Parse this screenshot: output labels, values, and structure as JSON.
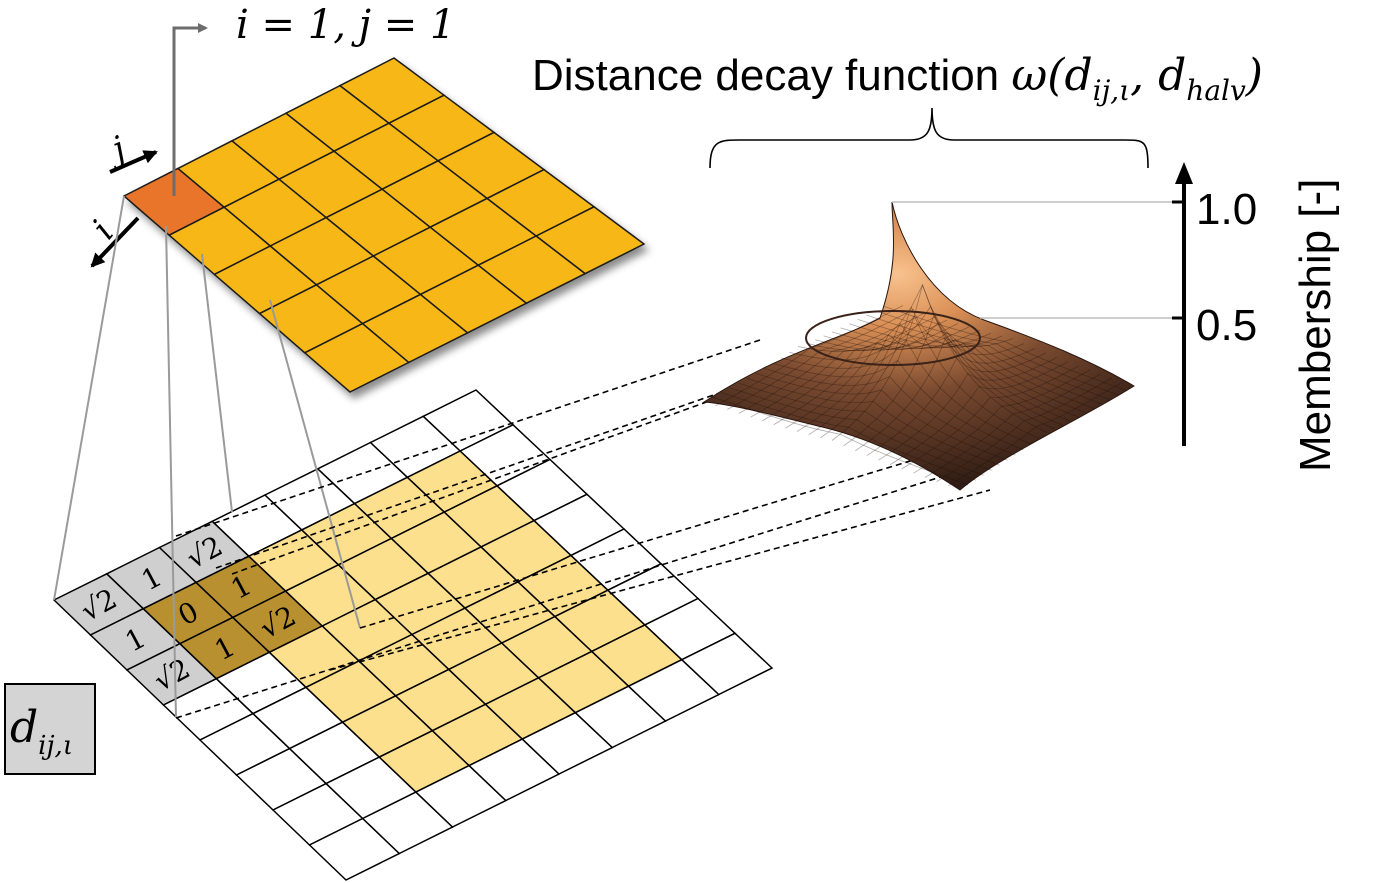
{
  "index_label": "i = 1, j = 1",
  "axis_j": "j",
  "axis_i": "i",
  "title": {
    "prefix": "Distance decay function ",
    "omega": "ω",
    "open": "(",
    "d1": "d",
    "d1_sub": "ij,ι",
    "comma": ", ",
    "d2": "d",
    "d2_sub": "halv",
    "close": ")"
  },
  "yaxis": {
    "label": "Membership [-]",
    "tick_top": "1.0",
    "tick_mid": "0.5"
  },
  "distance_box": {
    "d": "d",
    "sub": "ij,ι"
  },
  "kernel_values": [
    [
      "√2",
      "1",
      "√2"
    ],
    [
      "1",
      "0",
      "1"
    ],
    [
      "√2",
      "1",
      "√2"
    ]
  ],
  "colors": {
    "top_grid_fill": "#f7b718",
    "top_grid_highlight": "#e8752a",
    "kernel_gray": "#cfcfcf",
    "overlay_yellow": "#fde08e",
    "overlay_dark": "#b8902f",
    "surface_peak": "#f7b27a",
    "surface_base": "#3a2218"
  }
}
